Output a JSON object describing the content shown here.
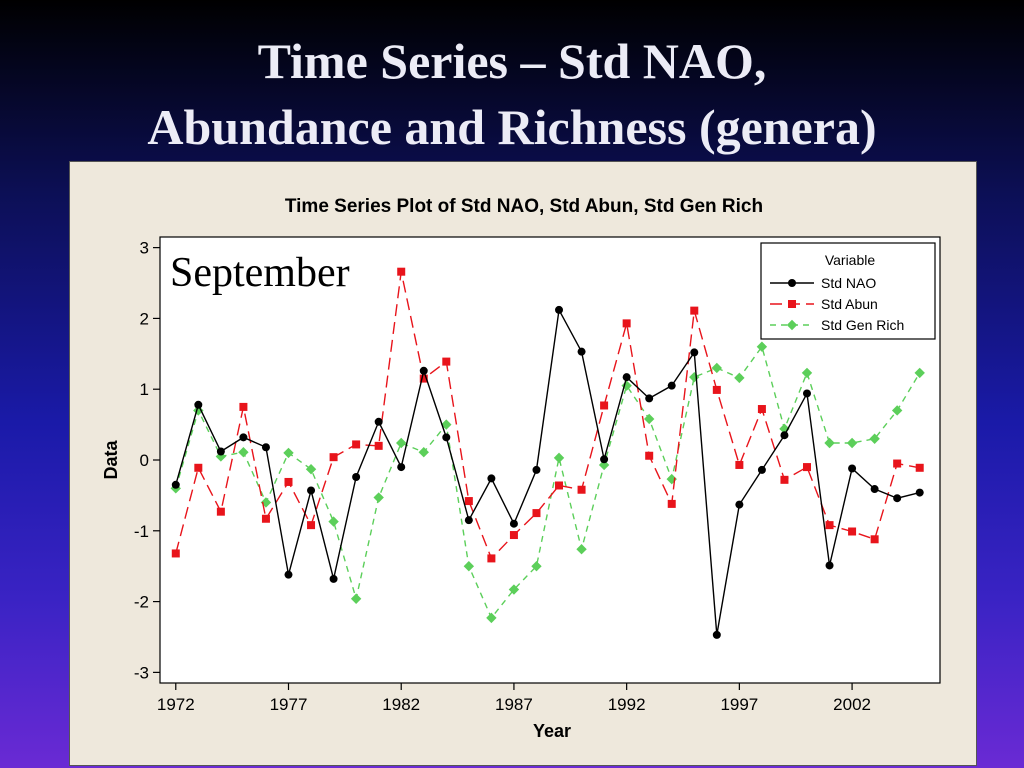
{
  "slide": {
    "title_line1": "Time Series – Std NAO,",
    "title_line2": "Abundance and Richness (genera)"
  },
  "chart_data": {
    "type": "line",
    "title": "Time Series Plot of Std NAO, Std Abun, Std Gen Rich",
    "xlabel": "Year",
    "ylabel": "Data",
    "annotation": "September",
    "x": [
      1972,
      1973,
      1974,
      1975,
      1976,
      1977,
      1978,
      1979,
      1980,
      1981,
      1982,
      1983,
      1984,
      1985,
      1986,
      1987,
      1988,
      1989,
      1990,
      1991,
      1992,
      1993,
      1994,
      1995,
      1996,
      1997,
      1998,
      1999,
      2000,
      2001,
      2002,
      2003,
      2004,
      2005
    ],
    "xticks": [
      1972,
      1977,
      1982,
      1987,
      1992,
      1997,
      2002
    ],
    "xtick_labels": [
      "1972",
      "1977",
      "1982",
      "1987",
      "1992",
      "1997",
      "2002"
    ],
    "xlim": [
      1971.3,
      2005.9
    ],
    "ylim": [
      -3.15,
      3.15
    ],
    "yticks": [
      -3,
      -2,
      -1,
      0,
      1,
      2,
      3
    ],
    "ytick_labels": [
      "-3",
      "-2",
      "-1",
      "0",
      "1",
      "2",
      "3"
    ],
    "grid": false,
    "legend": {
      "position": "top-right",
      "title": "Variable"
    },
    "series": [
      {
        "name": "Std NAO",
        "color": "#000000",
        "marker": "circle",
        "dash": "solid",
        "values": [
          -0.35,
          0.78,
          0.12,
          0.32,
          0.18,
          -1.62,
          -0.43,
          -1.68,
          -0.24,
          0.54,
          -0.1,
          1.26,
          0.32,
          -0.85,
          -0.26,
          -0.9,
          -0.14,
          2.12,
          1.53,
          0.01,
          1.17,
          0.87,
          1.05,
          1.52,
          -2.47,
          -0.63,
          -0.14,
          0.35,
          0.94,
          -1.49,
          -0.12,
          -0.41,
          -0.54,
          -0.46
        ]
      },
      {
        "name": "Std Abun",
        "color": "#e8141b",
        "marker": "square",
        "dash": "long-dash",
        "values": [
          -1.32,
          -0.11,
          -0.73,
          0.75,
          -0.83,
          -0.31,
          -0.92,
          0.04,
          0.22,
          0.2,
          2.66,
          1.15,
          1.39,
          -0.58,
          -1.39,
          -1.06,
          -0.75,
          -0.36,
          -0.42,
          0.77,
          1.93,
          0.06,
          -0.62,
          2.11,
          0.99,
          -0.07,
          0.72,
          -0.28,
          -0.1,
          -0.92,
          -1.01,
          -1.12,
          -0.05,
          -0.11
        ]
      },
      {
        "name": "Std Gen Rich",
        "color": "#5ccf5a",
        "marker": "diamond",
        "dash": "short-dash",
        "values": [
          -0.4,
          0.7,
          0.05,
          0.11,
          -0.6,
          0.1,
          -0.13,
          -0.87,
          -1.96,
          -0.53,
          0.24,
          0.11,
          0.5,
          -1.5,
          -2.23,
          -1.83,
          -1.5,
          0.03,
          -1.26,
          -0.07,
          1.05,
          0.58,
          -0.27,
          1.17,
          1.3,
          1.16,
          1.6,
          0.44,
          1.23,
          0.24,
          0.24,
          0.3,
          0.7,
          1.23
        ]
      }
    ]
  }
}
